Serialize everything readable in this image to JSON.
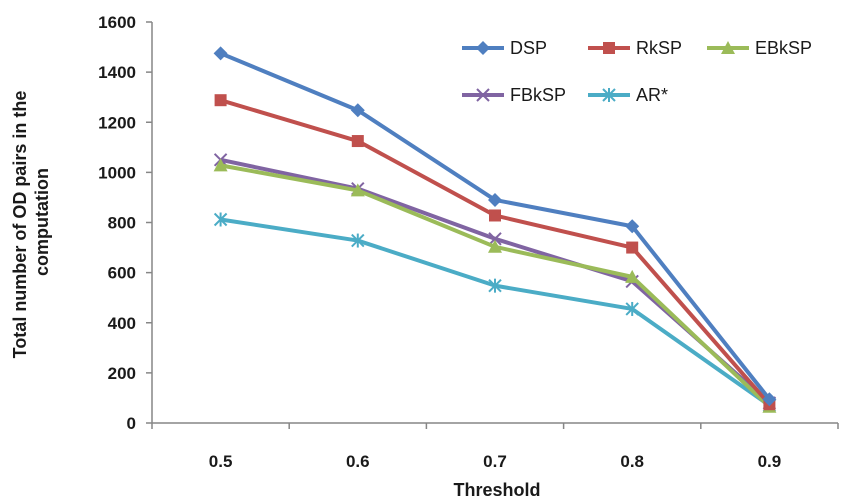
{
  "chart_data": {
    "type": "line",
    "title": "",
    "xlabel": "Threshold",
    "ylabel_lines": [
      "Total number of OD pairs in the",
      "computation"
    ],
    "categories": [
      "0.5",
      "0.6",
      "0.7",
      "0.8",
      "0.9"
    ],
    "ylim": [
      0,
      1600
    ],
    "yticks": [
      "0",
      "200",
      "400",
      "600",
      "800",
      "1000",
      "1200",
      "1400",
      "1600"
    ],
    "grid": false,
    "legend_position": "top-right",
    "series": [
      {
        "name": "DSP",
        "color": "#4f7fc0",
        "marker": "diamond",
        "values": [
          1475,
          1248,
          890,
          785,
          95
        ]
      },
      {
        "name": "RkSP",
        "color": "#c0504d",
        "marker": "square",
        "values": [
          1288,
          1125,
          828,
          700,
          75
        ]
      },
      {
        "name": "EBkSP",
        "color": "#9bbb59",
        "marker": "triangle",
        "values": [
          1028,
          928,
          703,
          583,
          65
        ]
      },
      {
        "name": "FBkSP",
        "color": "#8064a2",
        "marker": "x",
        "values": [
          1050,
          935,
          735,
          565,
          80
        ]
      },
      {
        "name": "AR*",
        "color": "#4bacc6",
        "marker": "asterisk",
        "values": [
          812,
          728,
          548,
          455,
          70
        ]
      }
    ]
  }
}
